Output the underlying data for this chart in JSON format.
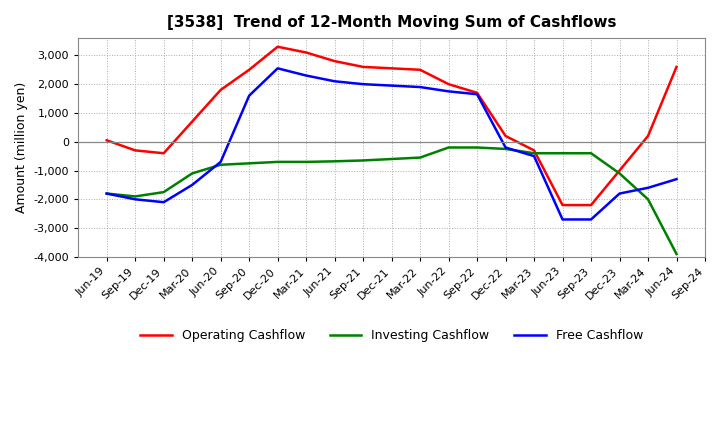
{
  "title": "[3538]  Trend of 12-Month Moving Sum of Cashflows",
  "ylabel": "Amount (million yen)",
  "x_labels": [
    "Jun-19",
    "Sep-19",
    "Dec-19",
    "Mar-20",
    "Jun-20",
    "Sep-20",
    "Dec-20",
    "Mar-21",
    "Jun-21",
    "Sep-21",
    "Dec-21",
    "Mar-22",
    "Jun-22",
    "Sep-22",
    "Dec-22",
    "Mar-23",
    "Jun-23",
    "Sep-23",
    "Dec-23",
    "Mar-24",
    "Jun-24",
    "Sep-24"
  ],
  "operating": [
    50,
    -300,
    -400,
    700,
    1800,
    2500,
    3300,
    3100,
    2800,
    2600,
    2550,
    2500,
    2000,
    1700,
    200,
    -300,
    -2200,
    -2200,
    -1000,
    200,
    2600,
    null
  ],
  "investing": [
    -1800,
    -1900,
    -1750,
    -1100,
    -800,
    -750,
    -700,
    -700,
    -680,
    -650,
    -600,
    -550,
    -200,
    -200,
    -250,
    -400,
    -400,
    -400,
    -1100,
    -2000,
    -3900,
    null
  ],
  "free": [
    -1800,
    -2000,
    -2100,
    -1500,
    -700,
    1600,
    2550,
    2300,
    2100,
    2000,
    1950,
    1900,
    1750,
    1650,
    -200,
    -500,
    -2700,
    -2700,
    -1800,
    -1600,
    -1300,
    null
  ],
  "operating_color": "#ff0000",
  "investing_color": "#008000",
  "free_color": "#0000ff",
  "ylim": [
    -4000,
    3600
  ],
  "yticks": [
    -4000,
    -3000,
    -2000,
    -1000,
    0,
    1000,
    2000,
    3000
  ],
  "bg_color": "#ffffff",
  "plot_bg": "#ffffff",
  "grid_color": "#aaaaaa",
  "linewidth": 1.8,
  "title_fontsize": 11,
  "label_fontsize": 9,
  "tick_fontsize": 8,
  "legend_fontsize": 9
}
